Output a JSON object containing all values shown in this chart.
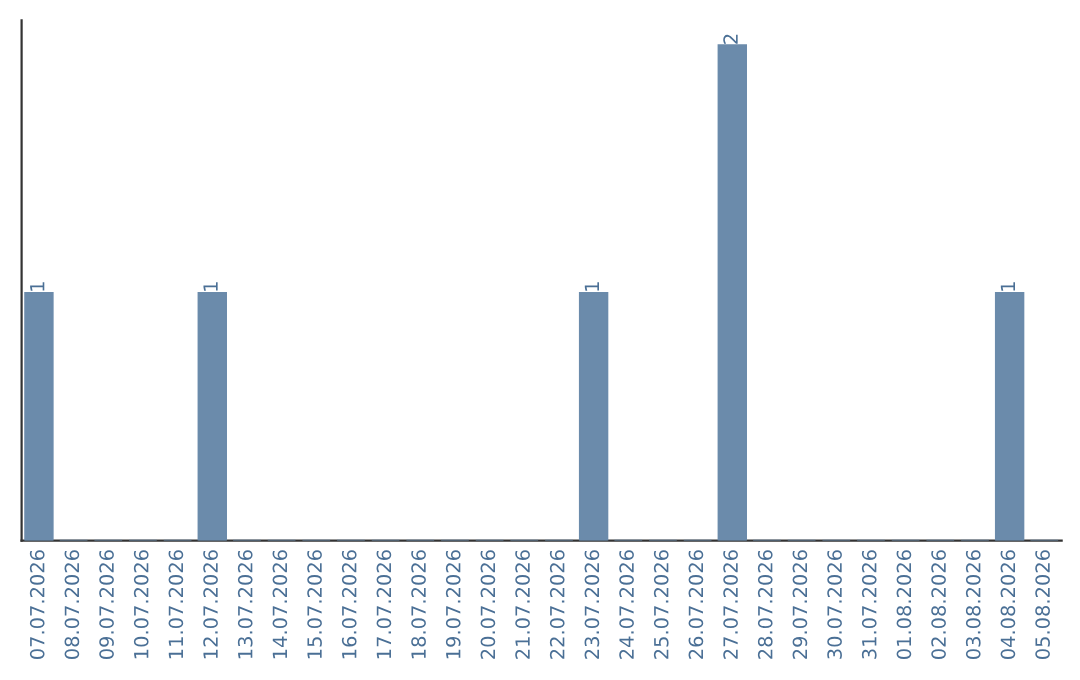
{
  "chart_data": {
    "type": "bar",
    "categories": [
      "07.07.2026",
      "08.07.2026",
      "09.07.2026",
      "10.07.2026",
      "11.07.2026",
      "12.07.2026",
      "13.07.2026",
      "14.07.2026",
      "15.07.2026",
      "16.07.2026",
      "17.07.2026",
      "18.07.2026",
      "19.07.2026",
      "20.07.2026",
      "21.07.2026",
      "22.07.2026",
      "23.07.2026",
      "24.07.2026",
      "25.07.2026",
      "26.07.2026",
      "27.07.2026",
      "28.07.2026",
      "29.07.2026",
      "30.07.2026",
      "31.07.2026",
      "01.08.2026",
      "02.08.2026",
      "03.08.2026",
      "04.08.2026",
      "05.08.2026"
    ],
    "values": [
      1,
      0,
      0,
      0,
      0,
      1,
      0,
      0,
      0,
      0,
      0,
      0,
      0,
      0,
      0,
      0,
      1,
      0,
      0,
      0,
      2,
      0,
      0,
      0,
      0,
      0,
      0,
      0,
      1,
      0
    ],
    "value_labels": [
      "1",
      null,
      null,
      null,
      null,
      "1",
      null,
      null,
      null,
      null,
      null,
      null,
      null,
      null,
      null,
      null,
      "1",
      null,
      null,
      null,
      "2",
      null,
      null,
      null,
      null,
      null,
      null,
      null,
      "1",
      null
    ],
    "color": "#6b8bab",
    "tick_labels": "x",
    "grid": false,
    "legend": false
  }
}
